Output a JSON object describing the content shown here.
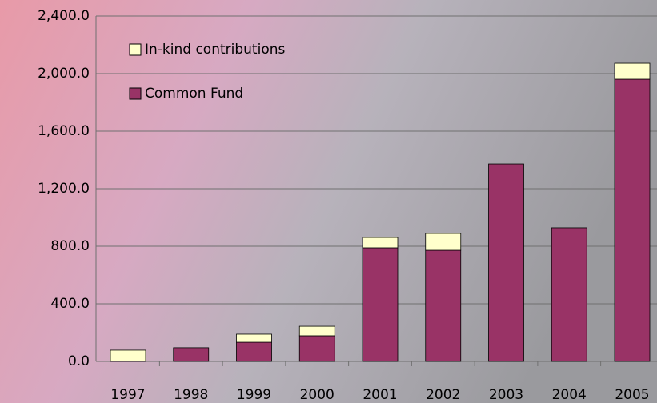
{
  "chart_data": {
    "type": "stacked-bar",
    "categories": [
      "1997",
      "1998",
      "1999",
      "2000",
      "2001",
      "2002",
      "2003",
      "2004",
      "2005"
    ],
    "series": [
      {
        "name": "Common Fund",
        "color": "#993366",
        "values": [
          0,
          95,
          133,
          178,
          789,
          772,
          1372,
          928,
          1961
        ]
      },
      {
        "name": "In-kind contributions",
        "color": "#ffffcc",
        "values": [
          78,
          0,
          56,
          66,
          72,
          117,
          0,
          0,
          111
        ]
      }
    ],
    "ylim": [
      0,
      2400
    ],
    "yticks": [
      {
        "value": 0,
        "label": "0.0"
      },
      {
        "value": 400,
        "label": "400.0"
      },
      {
        "value": 800,
        "label": "800.0"
      },
      {
        "value": 1200,
        "label": "1,200.0"
      },
      {
        "value": 1600,
        "label": "1,600.0"
      },
      {
        "value": 2000,
        "label": "2,000.0"
      },
      {
        "value": 2400,
        "label": "2,400.0"
      }
    ],
    "grid": true,
    "legend": "top-left"
  }
}
